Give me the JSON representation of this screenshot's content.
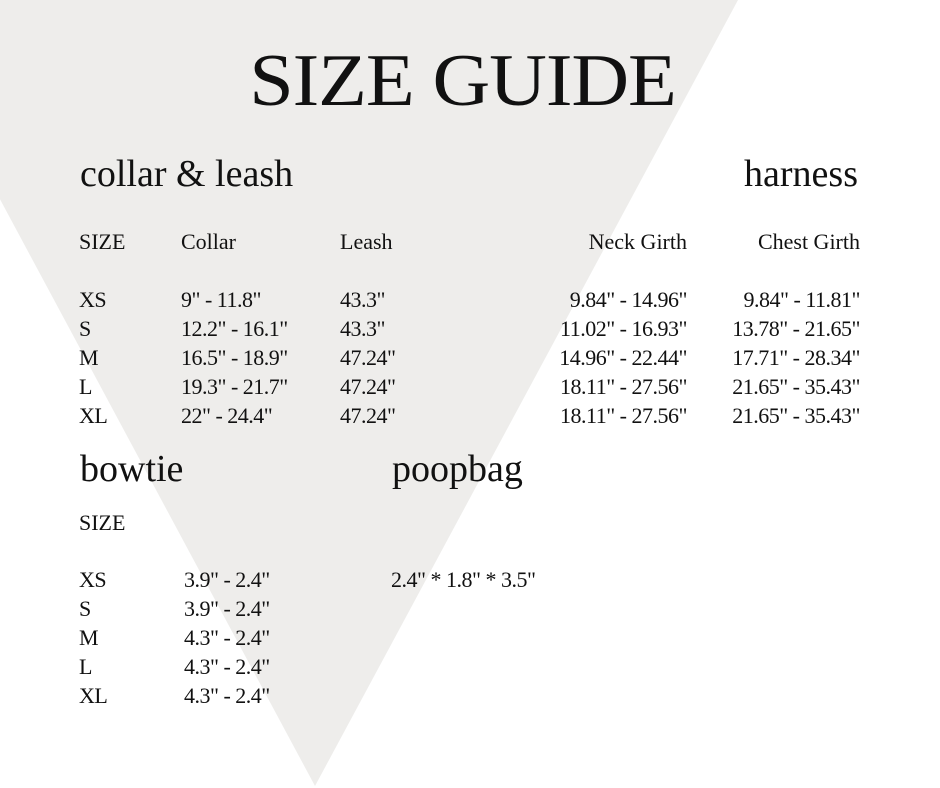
{
  "title": "SIZE GUIDE",
  "background_shape_color": "#eeedeb",
  "collar_leash": {
    "heading": "collar & leash",
    "columns": [
      "SIZE",
      "Collar",
      "Leash"
    ],
    "rows": [
      [
        "XS",
        "9\" - 11.8\"",
        "43.3\""
      ],
      [
        "S",
        "12.2\" - 16.1\"",
        "43.3\""
      ],
      [
        "M",
        "16.5\" - 18.9\"",
        "47.24\""
      ],
      [
        "L",
        "19.3\" - 21.7\"",
        "47.24\""
      ],
      [
        "XL",
        "22\" - 24.4\"",
        "47.24\""
      ]
    ]
  },
  "harness": {
    "heading": "harness",
    "columns": [
      "Neck Girth",
      "Chest Girth"
    ],
    "rows": [
      [
        "9.84\" - 14.96\"",
        "9.84\" - 11.81\""
      ],
      [
        "11.02\" - 16.93\"",
        "13.78\" - 21.65\""
      ],
      [
        "14.96\" - 22.44\"",
        "17.71\" - 28.34\""
      ],
      [
        "18.11\" - 27.56\"",
        "21.65\" - 35.43\""
      ],
      [
        "18.11\" - 27.56\"",
        "21.65\" - 35.43\""
      ]
    ]
  },
  "bowtie": {
    "heading": "bowtie",
    "size_label": "SIZE",
    "rows": [
      [
        "XS",
        "3.9\" - 2.4\""
      ],
      [
        "S",
        "3.9\" - 2.4\""
      ],
      [
        "M",
        "4.3\" - 2.4\""
      ],
      [
        "L",
        "4.3\" - 2.4\""
      ],
      [
        "XL",
        "4.3\" - 2.4\""
      ]
    ]
  },
  "poopbag": {
    "heading": "poopbag",
    "dimensions": "2.4\" * 1.8\" * 3.5\""
  }
}
